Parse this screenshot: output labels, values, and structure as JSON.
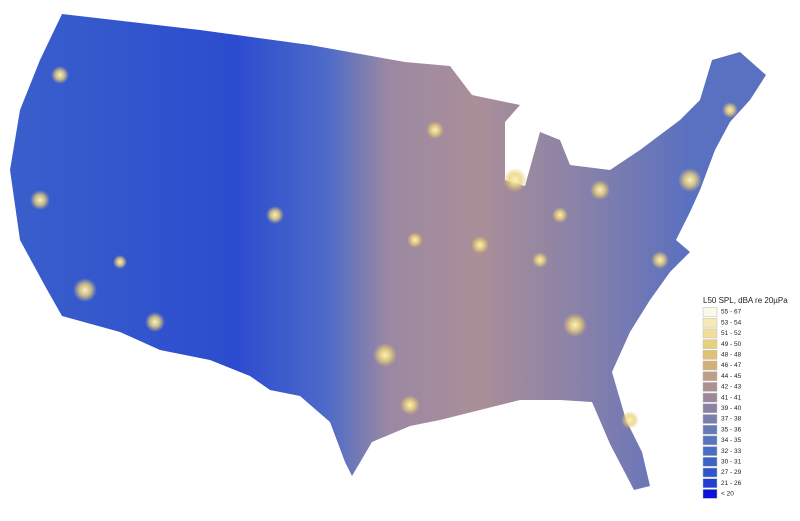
{
  "legend": {
    "title": "L50 SPL, dBA re 20µPa",
    "entries": [
      {
        "label": "55 - 67",
        "color": "#fbf8e6"
      },
      {
        "label": "53 - 54",
        "color": "#f6eab4"
      },
      {
        "label": "51 - 52",
        "color": "#f1de98"
      },
      {
        "label": "49 - 50",
        "color": "#e9d07e"
      },
      {
        "label": "48 - 48",
        "color": "#dfc274"
      },
      {
        "label": "46 - 47",
        "color": "#d2b07a"
      },
      {
        "label": "44 - 45",
        "color": "#c09e86"
      },
      {
        "label": "42 - 43",
        "color": "#ad9090"
      },
      {
        "label": "41 - 41",
        "color": "#9c8898"
      },
      {
        "label": "39 - 40",
        "color": "#8a82a2"
      },
      {
        "label": "37 - 38",
        "color": "#787eae"
      },
      {
        "label": "35 - 36",
        "color": "#667ab8"
      },
      {
        "label": "34 - 35",
        "color": "#5874be"
      },
      {
        "label": "32 - 33",
        "color": "#4a6cc4"
      },
      {
        "label": "30 - 31",
        "color": "#3d62c8"
      },
      {
        "label": "27 - 29",
        "color": "#2f55cc"
      },
      {
        "label": "21 - 26",
        "color": "#1f40d2"
      },
      {
        "label": "< 20",
        "color": "#0a14d8"
      }
    ]
  }
}
